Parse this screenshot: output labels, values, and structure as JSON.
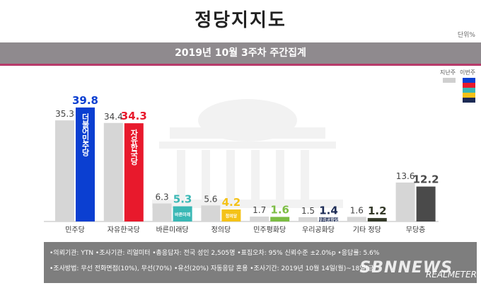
{
  "title": "정당지지도",
  "unit": "단위%",
  "subtitle": "2019년 10월 3주차 주간집계",
  "legend": {
    "prev": "지난주",
    "curr": "이번주"
  },
  "colors": {
    "prev": "#d6d6d6",
    "curr": [
      "#0b3fd1",
      "#e8192c",
      "#3ab8b5",
      "#f4c218",
      "#7cbd43",
      "#1c2b55",
      "#333828",
      "#4a4a4a"
    ]
  },
  "chart_data": {
    "type": "bar",
    "categories": [
      "민주당",
      "자유한국당",
      "바른미래당",
      "정의당",
      "민주평화당",
      "우리공화당",
      "기타 정당",
      "무당층"
    ],
    "series": [
      {
        "name": "지난주",
        "values": [
          35.3,
          34.4,
          6.3,
          5.6,
          1.7,
          1.5,
          1.6,
          13.6
        ]
      },
      {
        "name": "이번주",
        "values": [
          39.8,
          34.3,
          5.3,
          4.2,
          1.6,
          1.4,
          1.2,
          12.2
        ]
      }
    ],
    "ylim": [
      0,
      42
    ]
  },
  "bar_labels": [
    "더불어민주당",
    "자유한국당",
    "바른미래",
    "정의당",
    "",
    "우리공화당",
    "",
    ""
  ],
  "footer": {
    "line1": "•의뢰기관: YTN  •조사기관: 리얼미터  •총응답자: 전국 성인 2,505명  •표집오차: 95% 신뢰수준 ±2.0%p  •응답률: 5.6%",
    "line2": "•조사방법: 무선 전화면접(10%), 무선(70%) •유선(20%) 자동응답 혼용  •조사기간: 2019년 10월 14일(월)~18일(금)"
  },
  "watermark": {
    "main": "SBNNEWS",
    "brand": "REALMETER"
  }
}
